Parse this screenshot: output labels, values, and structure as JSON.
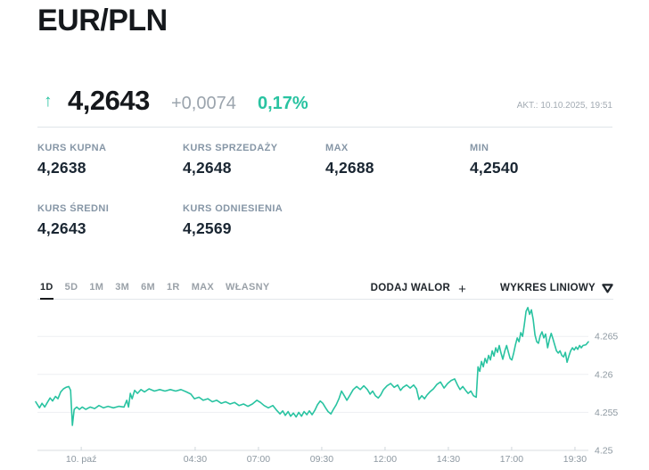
{
  "page": {
    "title": "EUR/PLN"
  },
  "quote": {
    "arrow_icon": "↑",
    "price": "4,2643",
    "change": "+0,0074",
    "change_pct": "0,17%",
    "updated": "AKT.: 10.10.2025, 19:51",
    "up_color": "#29c3a1"
  },
  "stats": {
    "items": [
      {
        "label": "KURS KUPNA",
        "value": "4,2638"
      },
      {
        "label": "KURS SPRZEDAŻY",
        "value": "4,2648"
      },
      {
        "label": "MAX",
        "value": "4,2688"
      },
      {
        "label": "MIN",
        "value": "4,2540"
      },
      {
        "label": "KURS ŚREDNI",
        "value": "4,2643"
      },
      {
        "label": "KURS ODNIESIENIA",
        "value": "4,2569"
      }
    ]
  },
  "toolbar": {
    "periods": [
      "1D",
      "5D",
      "1M",
      "3M",
      "6M",
      "1R",
      "MAX",
      "WŁASNY"
    ],
    "active_period": "1D",
    "add_asset_label": "DODAJ WALOR",
    "add_asset_plus": "+",
    "chart_type_label": "WYKRES LINIOWY"
  },
  "chart_data": {
    "type": "line",
    "title": "EUR/PLN 1D",
    "line_color": "#29c3a1",
    "grid_color": "#edeff2",
    "axis_color": "#d8dde1",
    "tick_color": "#cfd6db",
    "label_color": "#8d98a1",
    "x_unit": "hours, 10.10.2025 (0 = midnight)",
    "t_range": [
      -1.8,
      20.03
    ],
    "v_range": [
      4.25,
      4.2696
    ],
    "x_ticks": [
      {
        "t": 0,
        "label": "10. paź"
      },
      {
        "t": 4.5,
        "label": "04:30"
      },
      {
        "t": 7,
        "label": "07:00"
      },
      {
        "t": 9.5,
        "label": "09:30"
      },
      {
        "t": 12,
        "label": "12:00"
      },
      {
        "t": 14.5,
        "label": "14:30"
      },
      {
        "t": 17,
        "label": "17:00"
      },
      {
        "t": 19.5,
        "label": "19:30"
      }
    ],
    "y_ticks": [
      {
        "v": 4.265,
        "label": "4.265"
      },
      {
        "v": 4.26,
        "label": "4.26"
      },
      {
        "v": 4.255,
        "label": "4.255"
      },
      {
        "v": 4.25,
        "label": "4.25"
      }
    ],
    "points": [
      [
        -1.8,
        4.2564
      ],
      [
        -1.65,
        4.2556
      ],
      [
        -1.55,
        4.2562
      ],
      [
        -1.44,
        4.2557
      ],
      [
        -1.34,
        4.2563
      ],
      [
        -1.23,
        4.2569
      ],
      [
        -1.13,
        4.2565
      ],
      [
        -1.02,
        4.2571
      ],
      [
        -0.92,
        4.2568
      ],
      [
        -0.81,
        4.2577
      ],
      [
        -0.7,
        4.2581
      ],
      [
        -0.6,
        4.2583
      ],
      [
        -0.49,
        4.2584
      ],
      [
        -0.42,
        4.2579
      ],
      [
        -0.39,
        4.256
      ],
      [
        -0.35,
        4.2533
      ],
      [
        -0.28,
        4.2554
      ],
      [
        -0.18,
        4.2557
      ],
      [
        -0.07,
        4.2554
      ],
      [
        0.04,
        4.2557
      ],
      [
        0.18,
        4.2554
      ],
      [
        0.35,
        4.2557
      ],
      [
        0.53,
        4.2555
      ],
      [
        0.7,
        4.2559
      ],
      [
        0.88,
        4.2556
      ],
      [
        1.06,
        4.2558
      ],
      [
        1.27,
        4.2556
      ],
      [
        1.48,
        4.2558
      ],
      [
        1.69,
        4.2557
      ],
      [
        1.8,
        4.2566
      ],
      [
        1.87,
        4.2557
      ],
      [
        1.94,
        4.2575
      ],
      [
        2.01,
        4.2568
      ],
      [
        2.11,
        4.2579
      ],
      [
        2.22,
        4.2575
      ],
      [
        2.36,
        4.258
      ],
      [
        2.5,
        4.2577
      ],
      [
        2.68,
        4.2581
      ],
      [
        2.89,
        4.2578
      ],
      [
        3.1,
        4.258
      ],
      [
        3.31,
        4.2578
      ],
      [
        3.52,
        4.258
      ],
      [
        3.73,
        4.2578
      ],
      [
        3.94,
        4.258
      ],
      [
        4.15,
        4.2577
      ],
      [
        4.33,
        4.2574
      ],
      [
        4.47,
        4.2568
      ],
      [
        4.65,
        4.257
      ],
      [
        4.82,
        4.2566
      ],
      [
        5.0,
        4.2568
      ],
      [
        5.18,
        4.2564
      ],
      [
        5.35,
        4.2566
      ],
      [
        5.53,
        4.2562
      ],
      [
        5.7,
        4.2564
      ],
      [
        5.88,
        4.2561
      ],
      [
        6.06,
        4.2563
      ],
      [
        6.23,
        4.2559
      ],
      [
        6.41,
        4.2561
      ],
      [
        6.58,
        4.2558
      ],
      [
        6.76,
        4.2561
      ],
      [
        6.94,
        4.2566
      ],
      [
        7.08,
        4.2563
      ],
      [
        7.22,
        4.2559
      ],
      [
        7.39,
        4.2556
      ],
      [
        7.57,
        4.2559
      ],
      [
        7.71,
        4.2553
      ],
      [
        7.85,
        4.2548
      ],
      [
        7.96,
        4.2552
      ],
      [
        8.06,
        4.2546
      ],
      [
        8.17,
        4.2551
      ],
      [
        8.27,
        4.2545
      ],
      [
        8.38,
        4.2549
      ],
      [
        8.49,
        4.2544
      ],
      [
        8.59,
        4.255
      ],
      [
        8.7,
        4.2545
      ],
      [
        8.8,
        4.2551
      ],
      [
        8.91,
        4.2547
      ],
      [
        9.01,
        4.2552
      ],
      [
        9.12,
        4.2547
      ],
      [
        9.23,
        4.2553
      ],
      [
        9.33,
        4.256
      ],
      [
        9.44,
        4.2565
      ],
      [
        9.54,
        4.2562
      ],
      [
        9.65,
        4.2556
      ],
      [
        9.75,
        4.2551
      ],
      [
        9.86,
        4.2548
      ],
      [
        9.96,
        4.2554
      ],
      [
        10.07,
        4.256
      ],
      [
        10.18,
        4.2568
      ],
      [
        10.28,
        4.2578
      ],
      [
        10.39,
        4.2572
      ],
      [
        10.49,
        4.2566
      ],
      [
        10.6,
        4.2572
      ],
      [
        10.74,
        4.258
      ],
      [
        10.88,
        4.2584
      ],
      [
        11.02,
        4.258
      ],
      [
        11.16,
        4.2585
      ],
      [
        11.3,
        4.258
      ],
      [
        11.41,
        4.2574
      ],
      [
        11.51,
        4.2578
      ],
      [
        11.62,
        4.2572
      ],
      [
        11.73,
        4.2569
      ],
      [
        11.83,
        4.2573
      ],
      [
        11.94,
        4.258
      ],
      [
        12.08,
        4.2585
      ],
      [
        12.22,
        4.2588
      ],
      [
        12.36,
        4.2583
      ],
      [
        12.5,
        4.2586
      ],
      [
        12.61,
        4.2579
      ],
      [
        12.71,
        4.2583
      ],
      [
        12.85,
        4.2586
      ],
      [
        12.99,
        4.2582
      ],
      [
        13.13,
        4.2586
      ],
      [
        13.24,
        4.2581
      ],
      [
        13.34,
        4.2567
      ],
      [
        13.45,
        4.2572
      ],
      [
        13.56,
        4.2568
      ],
      [
        13.66,
        4.2573
      ],
      [
        13.77,
        4.2577
      ],
      [
        13.91,
        4.2581
      ],
      [
        14.05,
        4.2587
      ],
      [
        14.19,
        4.259
      ],
      [
        14.33,
        4.2582
      ],
      [
        14.47,
        4.2588
      ],
      [
        14.61,
        4.2592
      ],
      [
        14.75,
        4.2594
      ],
      [
        14.86,
        4.2586
      ],
      [
        14.96,
        4.258
      ],
      [
        15.07,
        4.2584
      ],
      [
        15.18,
        4.2579
      ],
      [
        15.28,
        4.2575
      ],
      [
        15.39,
        4.2578
      ],
      [
        15.49,
        4.2572
      ],
      [
        15.6,
        4.257
      ],
      [
        15.67,
        4.261
      ],
      [
        15.74,
        4.2604
      ],
      [
        15.81,
        4.2617
      ],
      [
        15.88,
        4.261
      ],
      [
        15.95,
        4.2621
      ],
      [
        16.02,
        4.2615
      ],
      [
        16.09,
        4.2625
      ],
      [
        16.16,
        4.2619
      ],
      [
        16.23,
        4.2631
      ],
      [
        16.3,
        4.2624
      ],
      [
        16.37,
        4.2635
      ],
      [
        16.44,
        4.2629
      ],
      [
        16.51,
        4.2638
      ],
      [
        16.58,
        4.2628
      ],
      [
        16.65,
        4.262
      ],
      [
        16.73,
        4.2631
      ],
      [
        16.8,
        4.2638
      ],
      [
        16.87,
        4.2629
      ],
      [
        16.94,
        4.2621
      ],
      [
        17.01,
        4.2619
      ],
      [
        17.08,
        4.2628
      ],
      [
        17.15,
        4.2639
      ],
      [
        17.22,
        4.2648
      ],
      [
        17.29,
        4.2643
      ],
      [
        17.36,
        4.2655
      ],
      [
        17.43,
        4.265
      ],
      [
        17.5,
        4.2665
      ],
      [
        17.57,
        4.2683
      ],
      [
        17.64,
        4.2688
      ],
      [
        17.71,
        4.2679
      ],
      [
        17.78,
        4.2685
      ],
      [
        17.85,
        4.2672
      ],
      [
        17.92,
        4.2652
      ],
      [
        17.99,
        4.2643
      ],
      [
        18.06,
        4.2641
      ],
      [
        18.13,
        4.2651
      ],
      [
        18.2,
        4.2656
      ],
      [
        18.27,
        4.2648
      ],
      [
        18.34,
        4.2653
      ],
      [
        18.42,
        4.2635
      ],
      [
        18.49,
        4.2646
      ],
      [
        18.56,
        4.2654
      ],
      [
        18.63,
        4.2647
      ],
      [
        18.7,
        4.2639
      ],
      [
        18.77,
        4.2631
      ],
      [
        18.84,
        4.2628
      ],
      [
        18.91,
        4.2631
      ],
      [
        18.98,
        4.2625
      ],
      [
        19.05,
        4.2623
      ],
      [
        19.12,
        4.2629
      ],
      [
        19.19,
        4.2616
      ],
      [
        19.26,
        4.2624
      ],
      [
        19.33,
        4.2631
      ],
      [
        19.4,
        4.2635
      ],
      [
        19.47,
        4.2632
      ],
      [
        19.54,
        4.2636
      ],
      [
        19.61,
        4.2633
      ],
      [
        19.68,
        4.2638
      ],
      [
        19.75,
        4.2635
      ],
      [
        19.82,
        4.2638
      ],
      [
        19.93,
        4.2639
      ],
      [
        20.03,
        4.2643
      ]
    ]
  }
}
